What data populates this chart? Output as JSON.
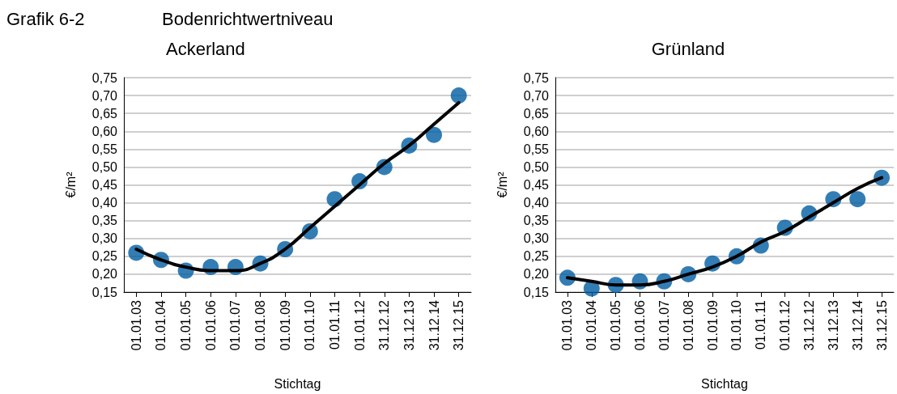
{
  "chart_data": [
    {
      "type": "scatter",
      "title": "Ackerland",
      "annotations": [
        "Grafik 6-2",
        "Bodenrichtwertniveau"
      ],
      "xlabel": "Stichtag",
      "ylabel": "€/m²",
      "categories": [
        "01.01.03",
        "01.01.04",
        "01.01.05",
        "01.01.06",
        "01.01.07",
        "01.01.08",
        "01.01.09",
        "01.01.10",
        "01.01.11",
        "01.01.12",
        "31.12.12",
        "31.12.13",
        "31.12.14",
        "31.12.15"
      ],
      "series": [
        {
          "color": "#005da2",
          "marker": "circle",
          "values": [
            0.26,
            0.24,
            0.21,
            0.22,
            0.22,
            0.23,
            0.27,
            0.32,
            0.41,
            0.46,
            0.5,
            0.56,
            0.59,
            0.7
          ]
        },
        {
          "type": "line",
          "color": "#000000",
          "marker": "none",
          "line_style": "solid",
          "values": [
            0.27,
            0.24,
            0.22,
            0.21,
            0.21,
            0.23,
            0.27,
            0.33,
            0.39,
            0.45,
            0.51,
            0.56,
            0.62,
            0.68
          ]
        }
      ],
      "ylim": [
        0.15,
        0.75
      ],
      "yticks": [
        {
          "value": 0.15,
          "label": "0,15"
        },
        {
          "value": 0.2,
          "label": "0,20"
        },
        {
          "value": 0.25,
          "label": "0,25"
        },
        {
          "value": 0.3,
          "label": "0,30"
        },
        {
          "value": 0.35,
          "label": "0,35"
        },
        {
          "value": 0.4,
          "label": "0,40"
        },
        {
          "value": 0.45,
          "label": "0,45"
        },
        {
          "value": 0.5,
          "label": "0,50"
        },
        {
          "value": 0.55,
          "label": "0,55"
        },
        {
          "value": 0.6,
          "label": "0,60"
        },
        {
          "value": 0.65,
          "label": "0,65"
        },
        {
          "value": 0.7,
          "label": "0,70"
        },
        {
          "value": 0.75,
          "label": "0,75"
        }
      ],
      "grid": "y"
    },
    {
      "type": "scatter",
      "title": "Grünland",
      "xlabel": "Stichtag",
      "ylabel": "€/m²",
      "categories": [
        "01.01.03",
        "01.01.04",
        "01.01.05",
        "01.01.06",
        "01.01.07",
        "01.01.08",
        "01.01.09",
        "01.01.10",
        "01.01.11",
        "01.01.12",
        "31.12.12",
        "31.12.13",
        "31.12.14",
        "31.12.15"
      ],
      "series": [
        {
          "color": "#005da2",
          "marker": "circle",
          "values": [
            0.19,
            0.16,
            0.17,
            0.18,
            0.18,
            0.2,
            0.23,
            0.25,
            0.28,
            0.33,
            0.37,
            0.41,
            0.41,
            0.47
          ]
        },
        {
          "type": "line",
          "color": "#000000",
          "marker": "none",
          "line_style": "solid",
          "values": [
            0.19,
            0.18,
            0.17,
            0.17,
            0.18,
            0.2,
            0.22,
            0.25,
            0.29,
            0.32,
            0.36,
            0.4,
            0.44,
            0.47
          ]
        }
      ],
      "ylim": [
        0.15,
        0.75
      ],
      "yticks": [
        {
          "value": 0.15,
          "label": "0,15"
        },
        {
          "value": 0.2,
          "label": "0,20"
        },
        {
          "value": 0.25,
          "label": "0,25"
        },
        {
          "value": 0.3,
          "label": "0,30"
        },
        {
          "value": 0.35,
          "label": "0,35"
        },
        {
          "value": 0.4,
          "label": "0,40"
        },
        {
          "value": 0.45,
          "label": "0,45"
        },
        {
          "value": 0.5,
          "label": "0,50"
        },
        {
          "value": 0.55,
          "label": "0,55"
        },
        {
          "value": 0.6,
          "label": "0,60"
        },
        {
          "value": 0.65,
          "label": "0,65"
        },
        {
          "value": 0.7,
          "label": "0,70"
        },
        {
          "value": 0.75,
          "label": "0,75"
        }
      ],
      "grid": "y"
    }
  ]
}
